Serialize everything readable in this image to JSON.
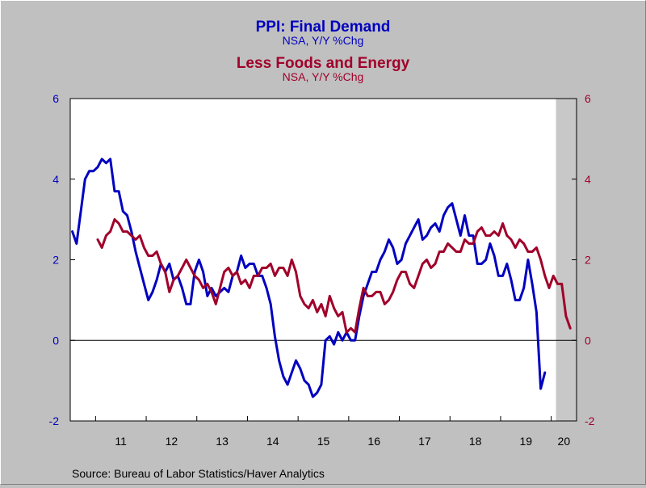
{
  "chart_data": {
    "type": "line",
    "title": "PPI: Final Demand",
    "subtitle": "NSA, Y/Y %Chg",
    "title2": "Less Foods and Energy",
    "subtitle2": "NSA, Y/Y %Chg",
    "source": "Source:  Bureau of Labor Statistics/Haver Analytics",
    "xlabel": "",
    "ylabel": "",
    "ylim": [
      -2,
      6
    ],
    "y_ticks": [
      "6",
      "4",
      "2",
      "0",
      "-2"
    ],
    "y_ticks_right": [
      "6",
      "4",
      "2",
      "0",
      "-2"
    ],
    "x_ticks": [
      "11",
      "12",
      "13",
      "14",
      "15",
      "16",
      "17",
      "18",
      "19",
      "20"
    ],
    "x_range": [
      "2010-07",
      "2020-06"
    ],
    "recession_shade": {
      "start": "2020-02",
      "end": "2020-06"
    },
    "grid": false,
    "zero_line": true,
    "legend": "titles at top",
    "colors": {
      "series1": "#0000c0",
      "series2": "#a0002a",
      "axis_left": "#0000c0",
      "axis_right": "#a0002a",
      "shade": "#c8c8c8",
      "plot_bg": "#ffffff",
      "background": "#c0c0c0"
    },
    "series": [
      {
        "name": "PPI: Final Demand",
        "start": "2010-07",
        "values": [
          2.7,
          2.4,
          3.2,
          4.0,
          4.2,
          4.2,
          4.3,
          4.5,
          4.4,
          4.5,
          3.7,
          3.7,
          3.2,
          3.1,
          2.7,
          2.2,
          1.8,
          1.4,
          1.0,
          1.2,
          1.5,
          1.9,
          1.7,
          1.9,
          1.5,
          1.6,
          1.3,
          0.9,
          0.9,
          1.7,
          2.0,
          1.7,
          1.1,
          1.3,
          1.1,
          1.2,
          1.3,
          1.2,
          1.6,
          1.7,
          2.1,
          1.8,
          1.9,
          1.9,
          1.6,
          1.6,
          1.3,
          0.9,
          0.1,
          -0.5,
          -0.9,
          -1.1,
          -0.8,
          -0.5,
          -0.7,
          -1.0,
          -1.1,
          -1.4,
          -1.3,
          -1.1,
          0.0,
          0.1,
          -0.1,
          0.2,
          0.0,
          0.2,
          0.0,
          0.0,
          0.6,
          1.1,
          1.4,
          1.7,
          1.7,
          2.0,
          2.2,
          2.5,
          2.3,
          1.9,
          2.0,
          2.4,
          2.6,
          2.8,
          3.0,
          2.5,
          2.6,
          2.8,
          2.9,
          2.7,
          3.1,
          3.3,
          3.4,
          3.0,
          2.6,
          3.1,
          2.6,
          2.6,
          1.9,
          1.9,
          2.0,
          2.4,
          2.1,
          1.6,
          1.6,
          1.9,
          1.5,
          1.0,
          1.0,
          1.3,
          2.0,
          1.4,
          0.7,
          -1.2,
          -0.8
        ]
      },
      {
        "name": "Less Foods and Energy",
        "start": "2011-01",
        "values": [
          2.5,
          2.3,
          2.6,
          2.7,
          3.0,
          2.9,
          2.7,
          2.7,
          2.6,
          2.5,
          2.6,
          2.3,
          2.1,
          2.1,
          2.2,
          1.9,
          1.7,
          1.2,
          1.5,
          1.6,
          1.8,
          2.0,
          1.8,
          1.6,
          1.5,
          1.3,
          1.4,
          1.2,
          0.9,
          1.3,
          1.7,
          1.8,
          1.6,
          1.7,
          1.4,
          1.5,
          1.3,
          1.6,
          1.6,
          1.8,
          1.8,
          1.9,
          1.6,
          1.8,
          1.8,
          1.6,
          2.0,
          1.7,
          1.1,
          0.9,
          0.8,
          1.0,
          0.7,
          0.9,
          0.6,
          1.1,
          0.8,
          0.6,
          0.7,
          0.2,
          0.3,
          0.2,
          0.8,
          1.3,
          1.1,
          1.1,
          1.2,
          1.2,
          0.9,
          1.0,
          1.2,
          1.5,
          1.7,
          1.7,
          1.4,
          1.3,
          1.6,
          1.9,
          2.0,
          1.8,
          1.9,
          2.2,
          2.2,
          2.4,
          2.3,
          2.2,
          2.2,
          2.5,
          2.4,
          2.4,
          2.7,
          2.8,
          2.6,
          2.6,
          2.7,
          2.6,
          2.9,
          2.6,
          2.5,
          2.3,
          2.5,
          2.4,
          2.2,
          2.2,
          2.3,
          2.0,
          1.6,
          1.3,
          1.6,
          1.4,
          1.4,
          0.6,
          0.3
        ]
      }
    ]
  }
}
